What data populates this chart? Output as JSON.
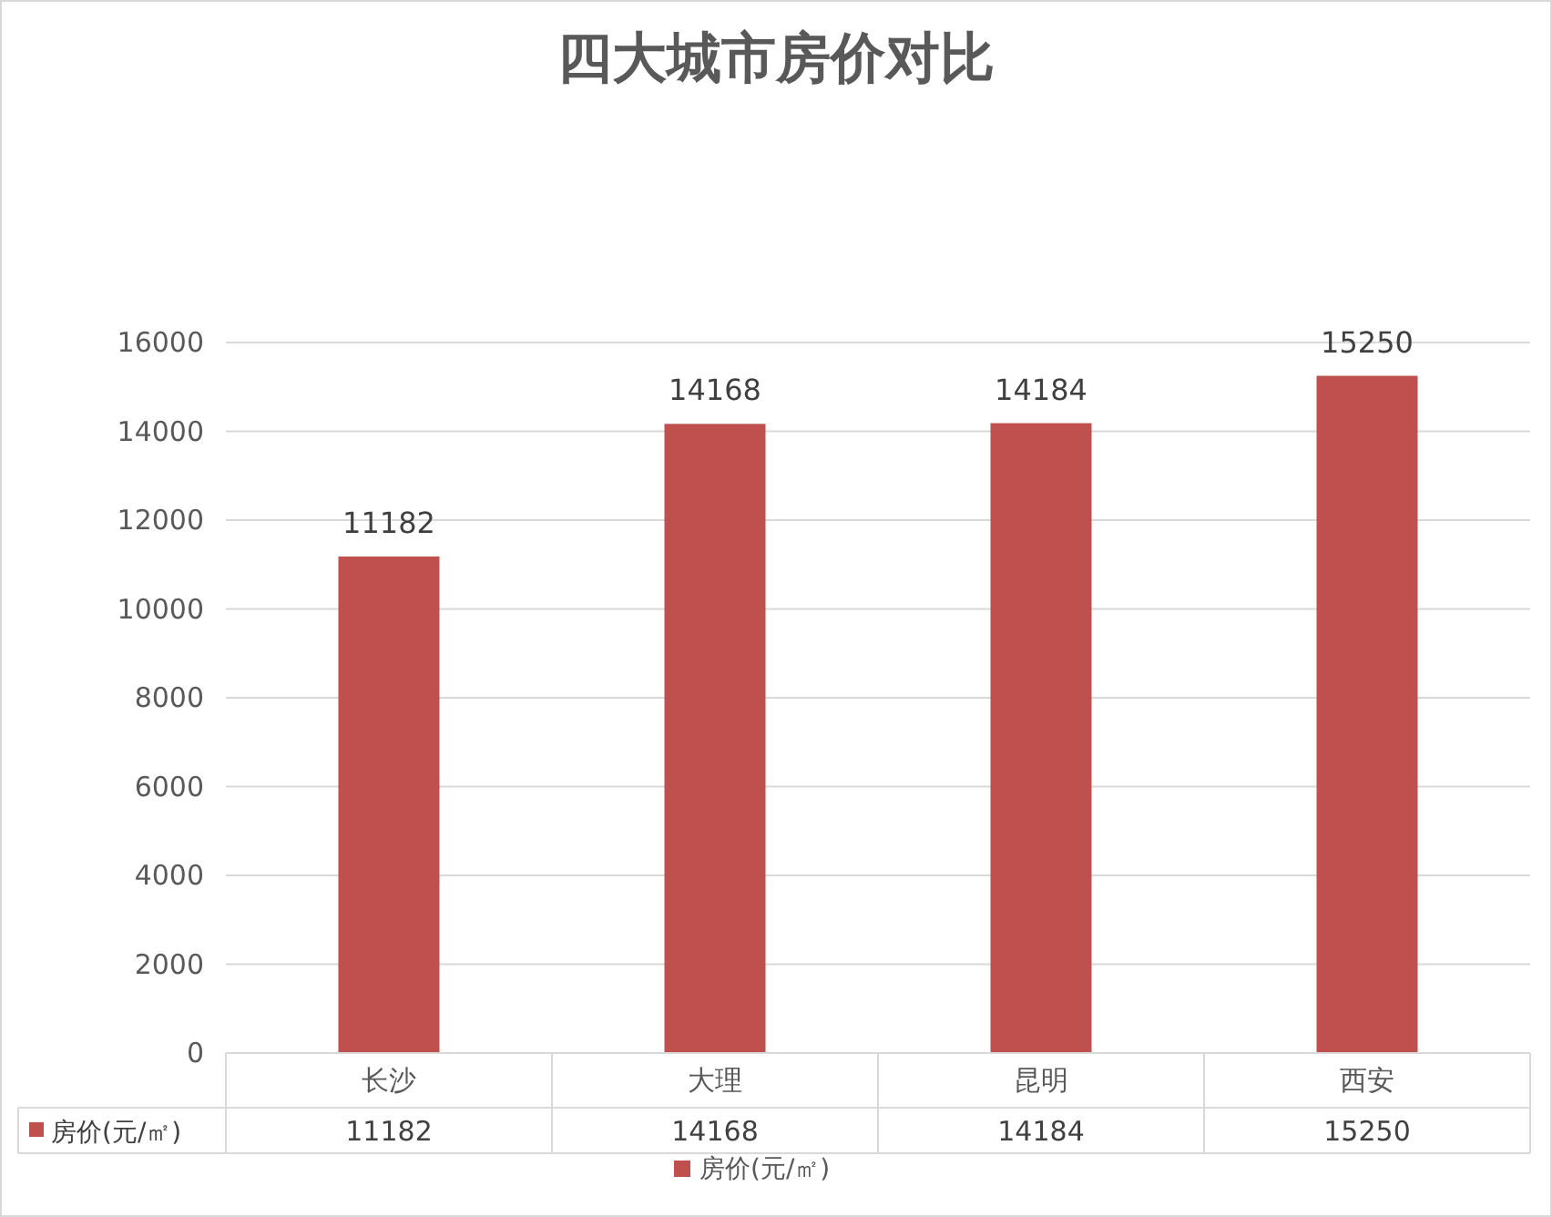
{
  "chart_data": {
    "type": "bar",
    "title": "四大城市房价对比",
    "categories": [
      "长沙",
      "大理",
      "昆明",
      "西安"
    ],
    "series": [
      {
        "name": "房价(元/㎡)",
        "color": "#c0504d",
        "values": [
          11182,
          14168,
          14184,
          15250
        ],
        "value_labels": [
          "11182",
          "14168",
          "14184",
          "15250"
        ]
      }
    ],
    "ylim": [
      0,
      16000
    ],
    "yticks": [
      0,
      2000,
      4000,
      6000,
      8000,
      10000,
      12000,
      14000,
      16000
    ],
    "grid": "y",
    "annotations": [
      "11182",
      "14168",
      "14184",
      "15250"
    ],
    "legend": "bottom"
  }
}
